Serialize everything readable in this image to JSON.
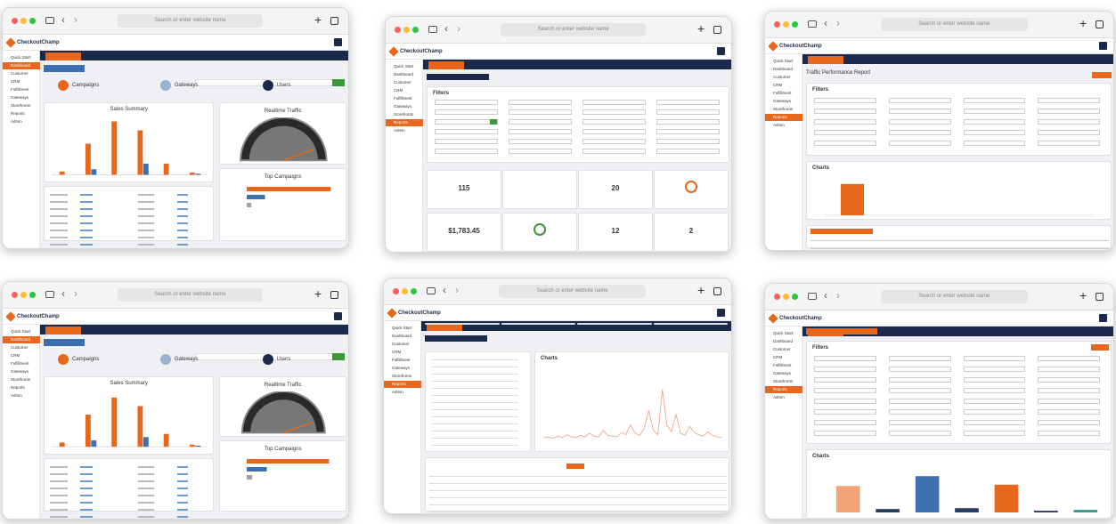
{
  "address_placeholder": "Search or enter website name",
  "brand": "CheckoutChamp",
  "menu": [
    "Quick Start",
    "Dashboard",
    "Customer",
    "CRM",
    "Fulfillment",
    "Gateways",
    "Storefronts",
    "Reports",
    "Admin"
  ],
  "windows": [
    {
      "view": "dashboard",
      "tiles": [
        "Campaigns",
        "Gateways",
        "Users"
      ],
      "sales_title": "Sales Summary",
      "traffic_title": "Realtime Traffic",
      "top_title": "Top Campaigns",
      "ylim": [
        0,
        50
      ],
      "series": [
        {
          "color": "#e8671c",
          "values": [
            3,
            28,
            48,
            40,
            10,
            2
          ]
        },
        {
          "color": "#3a6fb0",
          "values": [
            0,
            5,
            0,
            10,
            0,
            1
          ]
        }
      ],
      "top_values": [
        92,
        20,
        5
      ],
      "top_colors": [
        "#e8671c",
        "#3a6fb0",
        "#9aa3ad"
      ],
      "top_xlim": [
        0,
        100
      ]
    },
    {
      "view": "stats",
      "filters": "Filters",
      "stats": [
        115,
        20,
        "$1,783.45",
        12,
        2
      ]
    },
    {
      "view": "report",
      "title": "Traffic Performance Report",
      "filters": "Filters",
      "charts": "Charts",
      "ylim": [
        0,
        10
      ],
      "values": [
        8
      ],
      "color": "#e8671c"
    },
    {
      "view": "dashboard",
      "tiles": [
        "Campaigns",
        "Gateways",
        "Users"
      ],
      "sales_title": "Sales Summary",
      "traffic_title": "Realtime Traffic",
      "top_title": "Top Campaigns",
      "ylim": [
        0,
        50
      ],
      "series": [
        {
          "color": "#e8671c",
          "values": [
            4,
            30,
            46,
            38,
            12,
            2
          ]
        },
        {
          "color": "#3a6fb0",
          "values": [
            0,
            6,
            0,
            9,
            0,
            1
          ]
        }
      ],
      "top_values": [
        90,
        22,
        6
      ],
      "top_colors": [
        "#e8671c",
        "#3a6fb0",
        "#9aa3ad"
      ],
      "top_xlim": [
        0,
        100
      ]
    },
    {
      "view": "orders",
      "charts": "Charts",
      "ylim": [
        0,
        100
      ],
      "color": "#e8a07a",
      "values": [
        2,
        3,
        1,
        4,
        2,
        6,
        3,
        2,
        5,
        3,
        8,
        4,
        3,
        12,
        5,
        4,
        3,
        9,
        6,
        20,
        8,
        5,
        15,
        40,
        12,
        6,
        70,
        20,
        10,
        35,
        8,
        5,
        18,
        9,
        6,
        4,
        10,
        5,
        3,
        2
      ]
    },
    {
      "view": "summary",
      "filters": "Filters",
      "charts": "Charts",
      "ylim": [
        0,
        100
      ],
      "values": [
        62,
        8,
        85,
        10,
        65,
        4,
        6
      ],
      "colors": [
        "#f2a37a",
        "#2b3e63",
        "#3e6fae",
        "#2b3e63",
        "#e8671c",
        "#2b3e63",
        "#3a9a8c"
      ]
    }
  ]
}
